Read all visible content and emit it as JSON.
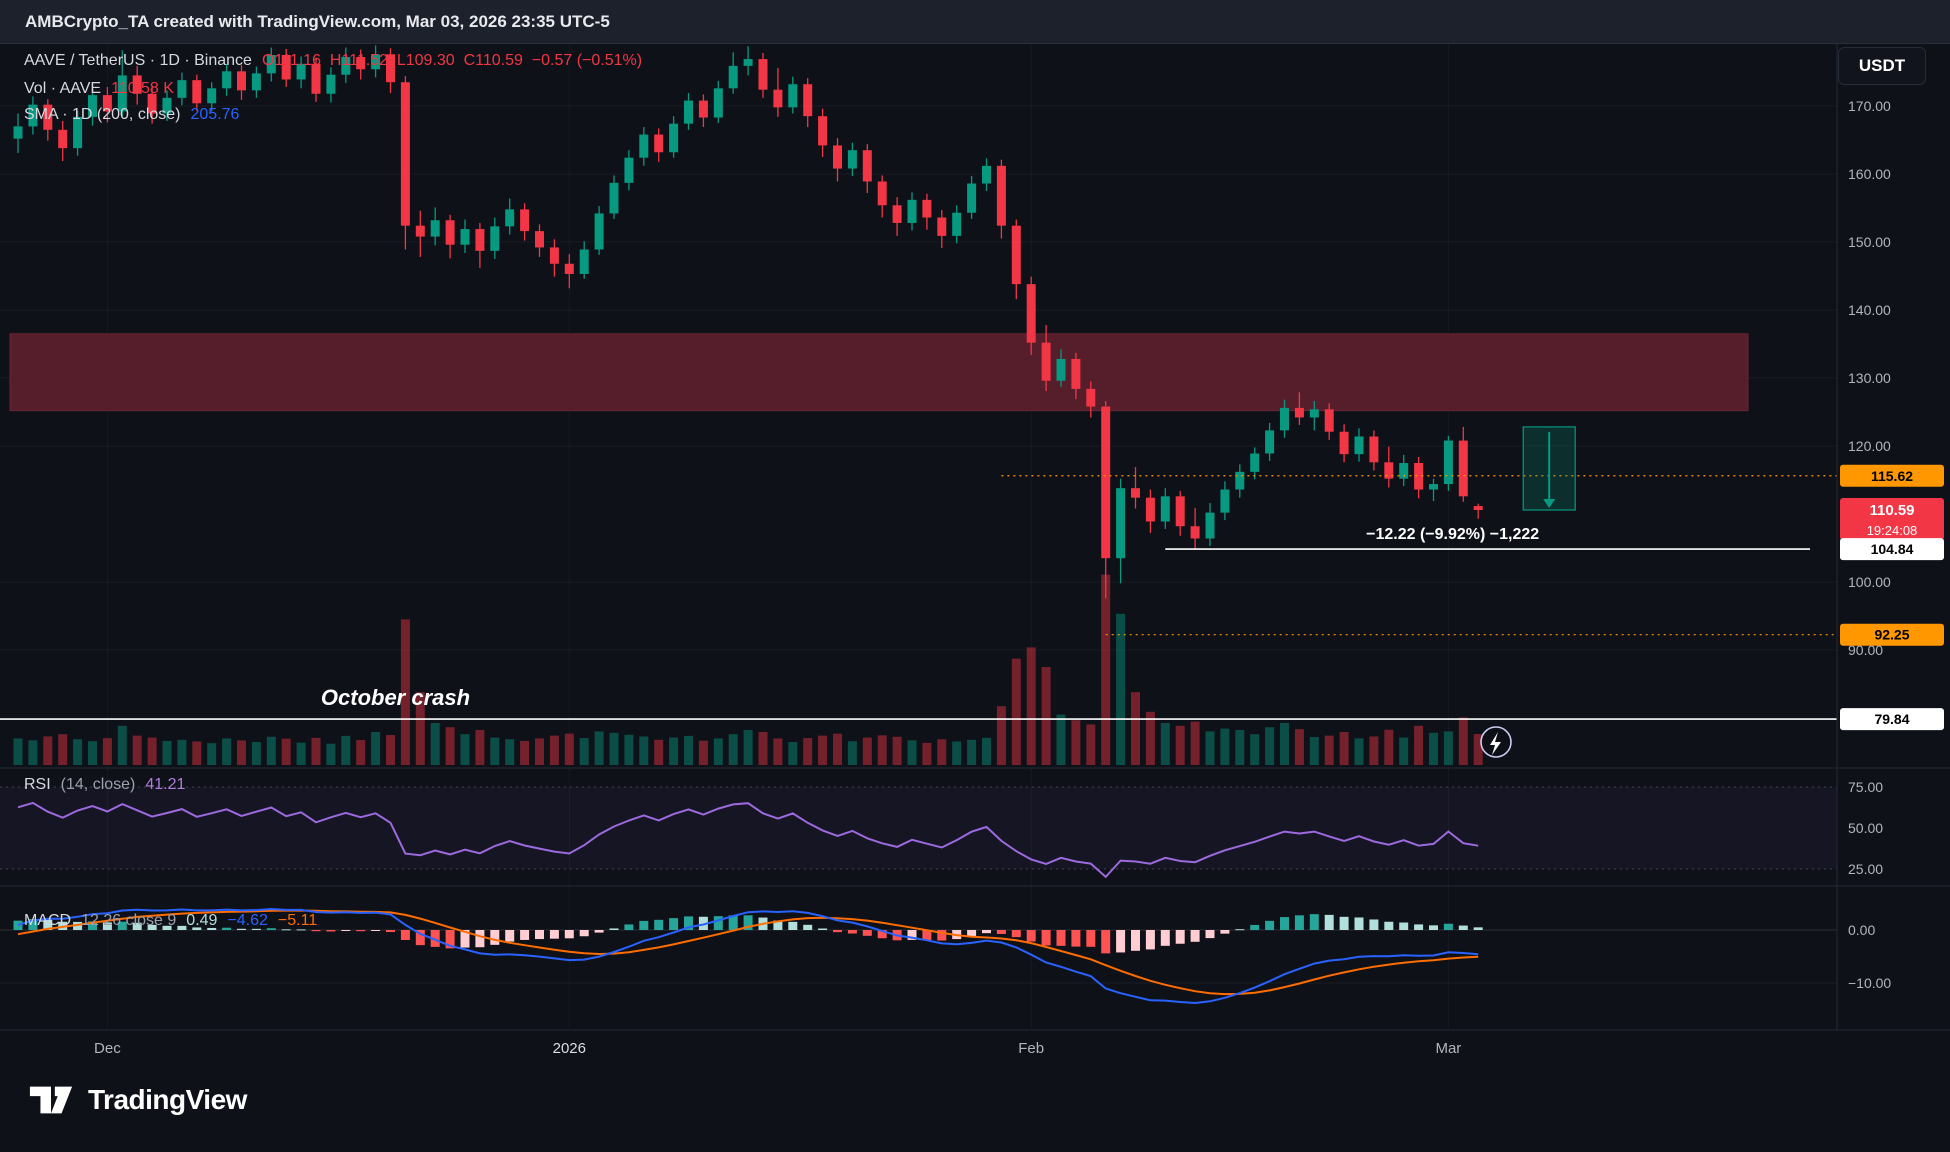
{
  "top_bar": {
    "attribution": "AMBCrypto_TA created with TradingView.com, Mar 03, 2026 23:35 UTC-5"
  },
  "currency_button": {
    "label": "USDT"
  },
  "legend": {
    "symbol_line": {
      "pair": "AAVE / TetherUS · 1D · Binance",
      "ohlc": "O111.16  H111.52  L109.30  C110.59  −0.57 (−0.51%)"
    },
    "volume_line": {
      "label": "Vol · AAVE",
      "value": "110.58 K"
    },
    "sma_line": {
      "label": "SMA · 1D (200, close)",
      "value": "205.76"
    }
  },
  "rsi_header": {
    "label": "RSI",
    "params": "(14, close)",
    "value": "41.21"
  },
  "macd_header": {
    "label": "MACD",
    "params": "12 26 close 9",
    "hist_value": "0.49",
    "macd_value": "−4.62",
    "signal_value": "−5.11"
  },
  "footer": {
    "brand": "TradingView"
  },
  "colors": {
    "up": "#089981",
    "down": "#f23645",
    "up_volume": "rgba(8,153,129,0.45)",
    "down_volume": "rgba(242,54,69,0.45)",
    "rsi": "#9c6ade",
    "macd": "#2962ff",
    "signal": "#ff6d00",
    "hist_up": "#26a69a",
    "hist_up_fade": "#b2dfdb",
    "hist_down": "#ff5252",
    "hist_down_fade": "#ffcdd2",
    "zone": "#561e2b",
    "level_orange": "#ff9800",
    "text": "#b2b5be",
    "white": "#ffffff"
  },
  "price_axis": {
    "ticks": [
      {
        "text": "170.00",
        "value": 170
      },
      {
        "text": "160.00",
        "value": 160
      },
      {
        "text": "150.00",
        "value": 150
      },
      {
        "text": "140.00",
        "value": 140
      },
      {
        "text": "130.00",
        "value": 130
      },
      {
        "text": "120.00",
        "value": 120
      },
      {
        "text": "100.00",
        "value": 100
      },
      {
        "text": "90.00",
        "value": 90
      }
    ],
    "chips": [
      {
        "id": "resistance-label",
        "text": "115.62",
        "price": 115.62,
        "bg": "#ff9800",
        "fg": "#000000"
      },
      {
        "id": "last-price-label",
        "text": "110.59",
        "price": 110.59,
        "bg": "#f23645",
        "fg": "#ffffff",
        "countdown": "19:24:08"
      },
      {
        "id": "measure-level-label",
        "text": "104.84",
        "price": 104.84,
        "bg": "#ffffff",
        "fg": "#000000"
      },
      {
        "id": "support-label",
        "text": "92.25",
        "price": 92.25,
        "bg": "#ff9800",
        "fg": "#000000"
      },
      {
        "id": "october-low-label",
        "text": "79.84",
        "price": 79.84,
        "bg": "#ffffff",
        "fg": "#000000"
      }
    ],
    "rsi_ticks": [
      {
        "text": "75.00",
        "value": 75
      },
      {
        "text": "50.00",
        "value": 50
      },
      {
        "text": "25.00",
        "value": 25
      }
    ],
    "macd_ticks": [
      {
        "text": "0.00",
        "value": 0
      },
      {
        "text": "−10.00",
        "value": -10
      }
    ]
  },
  "time_axis": {
    "labels": [
      {
        "text": "Dec",
        "index": 6
      },
      {
        "text": "2026",
        "index": 37
      },
      {
        "text": "Feb",
        "index": 68
      },
      {
        "text": "Mar",
        "index": 96
      }
    ]
  },
  "chart_data": {
    "type": "candlestick",
    "symbol": "AAVE/TetherUS",
    "exchange": "Binance",
    "interval": "1D",
    "start_date": "2025-11-25",
    "end_date": "2026-03-03",
    "ylim": [
      78,
      179
    ],
    "price_unit": "USDT",
    "volume_unit": "K",
    "prehistory_closes": [
      150,
      154,
      158,
      161,
      159,
      163,
      166,
      169,
      167,
      170,
      173,
      171,
      168,
      171,
      174,
      176,
      173,
      170,
      167,
      164,
      160,
      157,
      154,
      151,
      148,
      152,
      156,
      153,
      150,
      147,
      144,
      148,
      152,
      156,
      160,
      158,
      155,
      158,
      162,
      165
    ],
    "ohlcv": [
      [
        165.2,
        168.9,
        163.1,
        167.0,
        95
      ],
      [
        167.0,
        171.4,
        165.8,
        170.2,
        88
      ],
      [
        170.2,
        171.0,
        164.9,
        166.5,
        102
      ],
      [
        166.5,
        167.8,
        161.9,
        163.8,
        110
      ],
      [
        163.8,
        169.3,
        162.7,
        168.4,
        92
      ],
      [
        168.4,
        172.5,
        167.1,
        171.6,
        85
      ],
      [
        171.6,
        172.8,
        167.6,
        169.2,
        96
      ],
      [
        169.2,
        178.2,
        168.5,
        174.5,
        140
      ],
      [
        174.5,
        175.9,
        170.2,
        171.8,
        105
      ],
      [
        171.8,
        172.9,
        167.4,
        168.9,
        98
      ],
      [
        168.9,
        172.3,
        167.8,
        171.2,
        86
      ],
      [
        171.2,
        174.9,
        170.1,
        173.8,
        90
      ],
      [
        173.8,
        174.6,
        169.3,
        170.4,
        84
      ],
      [
        170.4,
        173.5,
        169.2,
        172.6,
        78
      ],
      [
        172.6,
        176.2,
        171.5,
        175.1,
        95
      ],
      [
        175.1,
        176.0,
        170.9,
        172.3,
        88
      ],
      [
        172.3,
        175.8,
        171.2,
        174.8,
        82
      ],
      [
        174.8,
        178.6,
        173.6,
        177.5,
        101
      ],
      [
        177.5,
        178.4,
        172.8,
        173.9,
        94
      ],
      [
        173.9,
        177.3,
        172.6,
        176.2,
        80
      ],
      [
        176.2,
        177.1,
        170.6,
        171.8,
        97
      ],
      [
        171.8,
        175.7,
        170.5,
        174.6,
        76
      ],
      [
        174.6,
        178.6,
        173.4,
        177.2,
        104
      ],
      [
        177.2,
        178.3,
        173.9,
        175.4,
        89
      ],
      [
        175.4,
        178.9,
        174.2,
        177.6,
        118
      ],
      [
        177.6,
        178.5,
        171.9,
        173.5,
        107
      ],
      [
        173.5,
        174.4,
        148.9,
        152.4,
        520
      ],
      [
        152.4,
        154.6,
        147.8,
        150.8,
        260
      ],
      [
        150.8,
        155.1,
        149.5,
        153.2,
        150
      ],
      [
        153.2,
        154.0,
        147.6,
        149.6,
        135
      ],
      [
        149.6,
        153.3,
        148.4,
        151.9,
        110
      ],
      [
        151.9,
        152.8,
        146.2,
        148.7,
        125
      ],
      [
        148.7,
        153.6,
        147.5,
        152.3,
        98
      ],
      [
        152.3,
        156.4,
        151.1,
        154.8,
        92
      ],
      [
        154.8,
        155.7,
        150.2,
        151.6,
        86
      ],
      [
        151.6,
        152.6,
        147.8,
        149.2,
        95
      ],
      [
        149.2,
        150.4,
        144.9,
        146.8,
        105
      ],
      [
        146.8,
        148.2,
        143.2,
        145.3,
        112
      ],
      [
        145.3,
        150.1,
        144.6,
        148.9,
        96
      ],
      [
        148.9,
        155.3,
        148.1,
        154.2,
        120
      ],
      [
        154.2,
        159.8,
        153.4,
        158.7,
        115
      ],
      [
        158.7,
        163.5,
        157.6,
        162.4,
        108
      ],
      [
        162.4,
        166.9,
        161.2,
        165.8,
        102
      ],
      [
        165.8,
        166.7,
        161.8,
        163.2,
        90
      ],
      [
        163.2,
        168.5,
        162.4,
        167.4,
        98
      ],
      [
        167.4,
        171.9,
        166.5,
        170.8,
        104
      ],
      [
        170.8,
        171.7,
        166.9,
        168.3,
        87
      ],
      [
        168.3,
        173.7,
        167.5,
        172.6,
        95
      ],
      [
        172.6,
        177.9,
        171.8,
        175.9,
        110
      ],
      [
        175.9,
        178.8,
        174.5,
        176.9,
        125
      ],
      [
        176.9,
        177.8,
        171.2,
        172.4,
        118
      ],
      [
        172.4,
        175.6,
        168.4,
        169.8,
        95
      ],
      [
        169.8,
        174.3,
        168.9,
        173.2,
        82
      ],
      [
        173.2,
        174.1,
        166.9,
        168.5,
        96
      ],
      [
        168.5,
        169.6,
        162.5,
        164.2,
        105
      ],
      [
        164.2,
        165.3,
        158.9,
        160.8,
        112
      ],
      [
        160.8,
        164.6,
        159.7,
        163.5,
        85
      ],
      [
        163.5,
        164.4,
        157.2,
        158.9,
        98
      ],
      [
        158.9,
        159.8,
        153.6,
        155.4,
        106
      ],
      [
        155.4,
        156.6,
        150.9,
        152.8,
        101
      ],
      [
        152.8,
        157.3,
        151.7,
        156.2,
        88
      ],
      [
        156.2,
        157.1,
        151.8,
        153.6,
        79
      ],
      [
        153.6,
        154.7,
        149.1,
        150.9,
        92
      ],
      [
        150.9,
        155.4,
        149.8,
        154.3,
        84
      ],
      [
        154.3,
        159.7,
        153.4,
        158.6,
        90
      ],
      [
        158.6,
        162.3,
        157.5,
        161.2,
        97
      ],
      [
        161.2,
        162.1,
        150.5,
        152.4,
        210
      ],
      [
        152.4,
        153.3,
        141.6,
        143.8,
        380
      ],
      [
        143.8,
        144.9,
        133.4,
        135.2,
        420
      ],
      [
        135.2,
        137.8,
        128.1,
        129.6,
        350
      ],
      [
        129.6,
        134.2,
        128.7,
        132.8,
        180
      ],
      [
        132.8,
        133.7,
        126.9,
        128.4,
        160
      ],
      [
        128.4,
        129.5,
        124.2,
        125.8,
        145
      ],
      [
        125.8,
        126.6,
        97.6,
        103.5,
        680
      ],
      [
        103.5,
        115.2,
        99.8,
        113.8,
        540
      ],
      [
        113.8,
        116.9,
        110.8,
        112.4,
        260
      ],
      [
        112.4,
        113.6,
        107.2,
        108.9,
        190
      ],
      [
        108.9,
        113.8,
        107.8,
        112.6,
        150
      ],
      [
        112.6,
        113.4,
        106.8,
        108.2,
        140
      ],
      [
        108.2,
        110.9,
        104.8,
        106.4,
        155
      ],
      [
        106.4,
        111.6,
        105.3,
        110.2,
        120
      ],
      [
        110.2,
        114.8,
        109.1,
        113.6,
        130
      ],
      [
        113.6,
        117.3,
        112.4,
        116.2,
        125
      ],
      [
        116.2,
        119.8,
        115.1,
        118.9,
        110
      ],
      [
        118.9,
        123.4,
        117.8,
        122.3,
        135
      ],
      [
        122.3,
        126.8,
        121.2,
        125.6,
        150
      ],
      [
        125.6,
        127.9,
        123.1,
        124.2,
        128
      ],
      [
        124.2,
        126.6,
        122.3,
        125.4,
        100
      ],
      [
        125.4,
        126.3,
        120.9,
        122.1,
        105
      ],
      [
        122.1,
        123.2,
        117.6,
        118.8,
        118
      ],
      [
        118.8,
        122.6,
        117.7,
        121.4,
        95
      ],
      [
        121.4,
        122.3,
        116.4,
        117.6,
        102
      ],
      [
        117.6,
        119.9,
        113.9,
        115.2,
        126
      ],
      [
        115.2,
        118.7,
        114.1,
        117.5,
        98
      ],
      [
        117.5,
        118.4,
        112.3,
        113.6,
        140
      ],
      [
        113.6,
        115.2,
        111.9,
        114.4,
        115
      ],
      [
        114.4,
        121.5,
        113.4,
        120.8,
        120
      ],
      [
        120.8,
        122.81,
        111.8,
        112.6,
        170
      ],
      [
        111.16,
        111.52,
        109.3,
        110.59,
        110.58
      ]
    ],
    "zone": {
      "top": 136.5,
      "bottom": 125.2,
      "color": "#561e2b"
    },
    "levels": [
      {
        "id": "resistance-115",
        "price": 115.62,
        "style": "dotted",
        "color": "#ff9800",
        "from_index": 66
      },
      {
        "id": "support-92",
        "price": 92.25,
        "style": "dotted",
        "color": "#ff9800",
        "from_index": 73
      },
      {
        "id": "measure-104",
        "price": 104.84,
        "style": "solid",
        "color": "#ffffff",
        "from_index": 77,
        "x2": 1810,
        "label": "−12.22 (−9.92%) −1,222"
      },
      {
        "id": "october-low-79",
        "price": 79.84,
        "style": "solid",
        "color": "#ffffff",
        "from_index": null
      }
    ],
    "annotations": [
      {
        "text": "October crash",
        "x_index": 21,
        "price": 81.9,
        "style": "italic-bold"
      }
    ],
    "measure": {
      "high": 122.81,
      "low": 110.59,
      "change": "−12.22",
      "change_pct": "−9.92%",
      "bars_after_last": 3
    },
    "indicators": {
      "sma": {
        "period": 200,
        "source": "close",
        "value": 205.76,
        "note": "above visible range"
      },
      "rsi": {
        "period": 14,
        "source": "close",
        "last": 41.21,
        "upper_band": 75,
        "mid_band": 50,
        "lower_band": 25
      },
      "macd": {
        "fast": 12,
        "slow": 26,
        "source": "close",
        "signal_period": 9,
        "last_hist": 0.49,
        "last_macd": -4.62,
        "last_signal": -5.11
      }
    }
  }
}
